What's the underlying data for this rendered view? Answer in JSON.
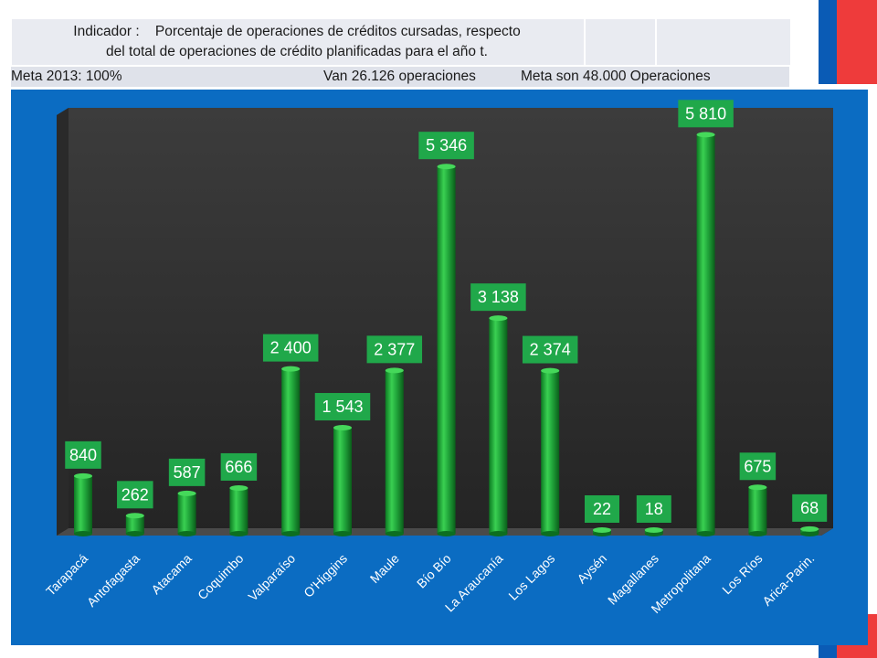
{
  "header": {
    "indicator_line1": "Indicador :    Porcentaje de operaciones de créditos cursadas, respecto",
    "indicator_line2": "del total de operaciones de crédito planificadas para el año t.",
    "meta_label": "Meta 2013: 100%",
    "van_label": "Van 26.126 operaciones",
    "meta_ops_label": "Meta son 48.000 Operaciones"
  },
  "colors": {
    "bar": "#22a83c",
    "label_bg": "#20a84a",
    "panel": "#0b6cc2",
    "flag_blue": "#0a5bb5",
    "flag_red": "#ee3b3b"
  },
  "chart_data": {
    "type": "bar",
    "title": "",
    "xlabel": "",
    "ylabel": "",
    "ylim": [
      0,
      6200
    ],
    "grid": false,
    "categories": [
      "Tarapacá",
      "Antofagasta",
      "Atacama",
      "Coquimbo",
      "Valparaíso",
      "O'Higgins",
      "Maule",
      "Bío Bío",
      "La Araucanía",
      "Los Lagos",
      "Aysén",
      "Magallanes",
      "Metropolitana",
      "Los Ríos",
      "Arica-Parin."
    ],
    "values": [
      840,
      262,
      587,
      666,
      2400,
      1543,
      2377,
      5346,
      3138,
      2374,
      22,
      18,
      5810,
      675,
      68
    ],
    "value_labels": [
      "840",
      "262",
      "587",
      "666",
      "2 400",
      "1 543",
      "2 377",
      "5 346",
      "3 138",
      "2 374",
      "22",
      "18",
      "5 810",
      "675",
      "68"
    ]
  }
}
